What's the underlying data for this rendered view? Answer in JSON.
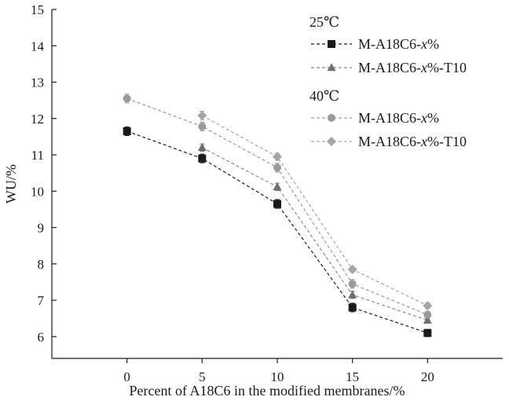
{
  "chart_data": {
    "type": "line",
    "title": "",
    "xlabel": "Percent of A18C6 in the modified membranes/%",
    "ylabel": "WU/%",
    "x": [
      0,
      5,
      10,
      15,
      20
    ],
    "x_ticks": [
      "0",
      "5",
      "10",
      "15",
      "20"
    ],
    "y_ticks": [
      "6",
      "7",
      "8",
      "9",
      "10",
      "11",
      "12",
      "13",
      "14",
      "15"
    ],
    "xlim": [
      -5,
      25
    ],
    "ylim": [
      5.4,
      15
    ],
    "grid": false,
    "legend": {
      "placement": "top-right",
      "groups": [
        {
          "title": "25℃",
          "series_indices": [
            0,
            1
          ]
        },
        {
          "title": "40℃",
          "series_indices": [
            2,
            3
          ]
        }
      ]
    },
    "series": [
      {
        "name": "M-A18C6-x%",
        "name_parts": [
          "M-A18C6-",
          "x",
          "%"
        ],
        "group": "25℃",
        "marker": "square",
        "color": "#1a1a1a",
        "line_color": "#1a1a1a",
        "values": [
          11.65,
          10.9,
          9.65,
          6.8,
          6.1
        ],
        "errors": [
          0.12,
          0.12,
          0.12,
          0.12,
          0.1
        ]
      },
      {
        "name": "M-A18C6-x%-T10",
        "name_parts": [
          "M-A18C6-",
          "x",
          "%-T10"
        ],
        "group": "25℃",
        "marker": "triangle",
        "color": "#6e6e6e",
        "line_color": "#8a8a8a",
        "values": [
          null,
          11.2,
          10.12,
          7.15,
          6.45
        ],
        "errors": [
          null,
          0.1,
          0.1,
          0.1,
          0.08
        ]
      },
      {
        "name": "M-A18C6-x%",
        "name_parts": [
          "M-A18C6-",
          "x",
          "%"
        ],
        "group": "40℃",
        "marker": "circle",
        "color": "#9a9a9a",
        "line_color": "#9a9a9a",
        "values": [
          12.55,
          11.78,
          10.65,
          7.45,
          6.6
        ],
        "errors": [
          0.12,
          0.12,
          0.12,
          0.12,
          0.1
        ]
      },
      {
        "name": "M-A18C6-x%-T10",
        "name_parts": [
          "M-A18C6-",
          "x",
          "%-T10"
        ],
        "group": "40℃",
        "marker": "diamond",
        "color": "#a5a5a5",
        "line_color": "#a5a5a5",
        "values": [
          null,
          12.08,
          10.95,
          7.85,
          6.85
        ],
        "errors": [
          null,
          0.12,
          0.1,
          0.08,
          0.08
        ]
      }
    ]
  }
}
